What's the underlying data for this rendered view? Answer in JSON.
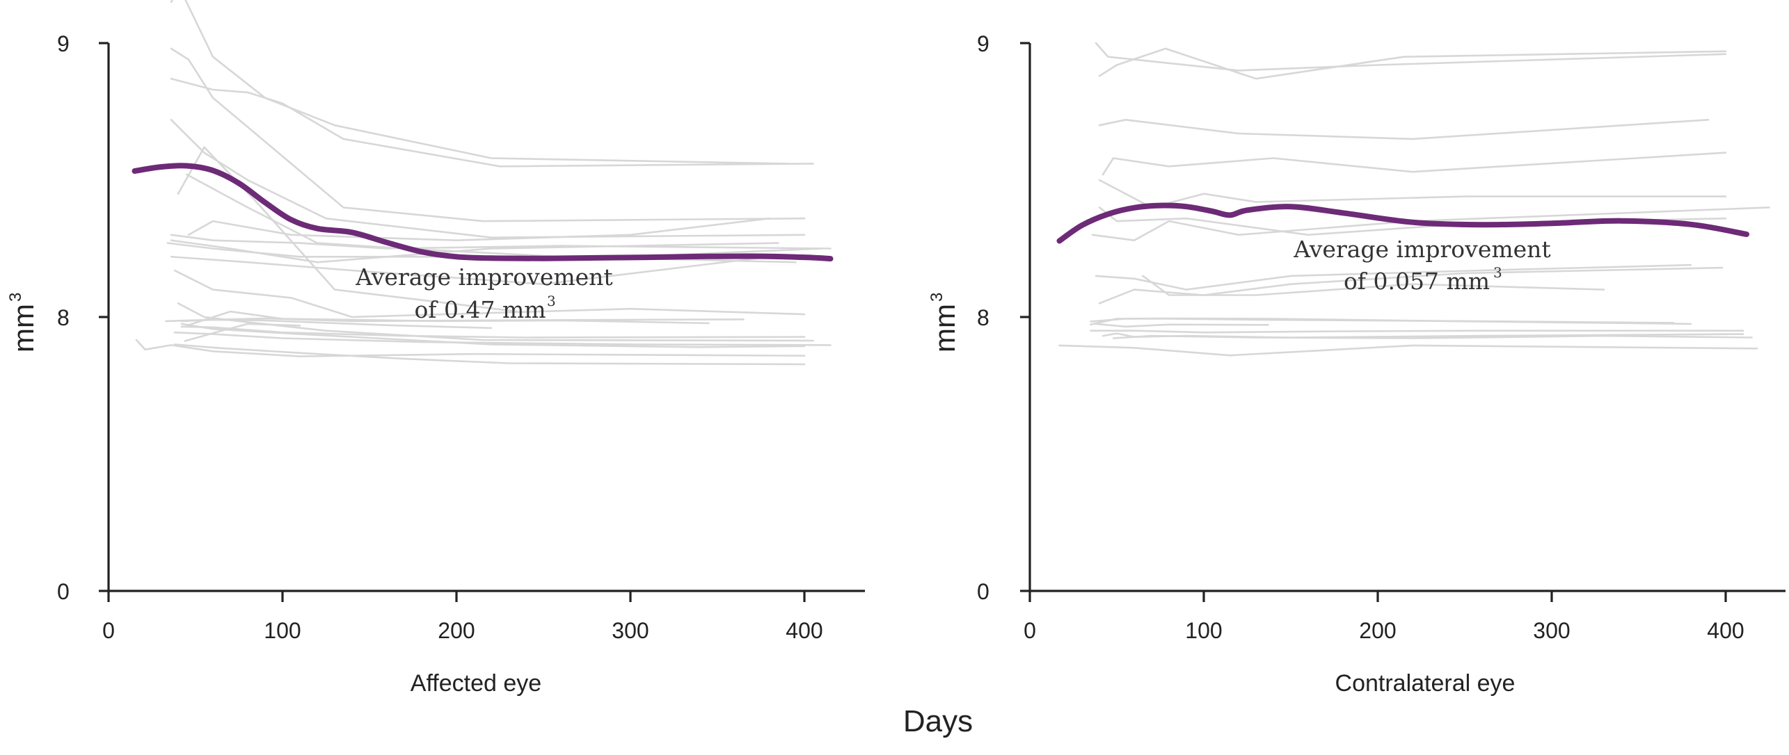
{
  "figure": {
    "common_xlabel": "Days",
    "colors": {
      "average": "#6d2a77",
      "individual": "#d7d7d7",
      "axis": "#222222"
    }
  },
  "chart_data": [
    {
      "type": "line",
      "title": "",
      "xlabel": "Affected eye",
      "ylabel": "mm",
      "ylabel_superscript": "3",
      "xlim": [
        0,
        435
      ],
      "ylim": [
        0,
        9
      ],
      "x_ticks": [
        0,
        100,
        200,
        300,
        400
      ],
      "y_ticks": [
        0,
        8,
        9
      ],
      "grid": false,
      "annotation": {
        "line1": "Average improvement",
        "line2": "of 0.47 mm",
        "superscript": "3"
      },
      "average_series": {
        "name": "",
        "x": [
          15,
          30,
          45,
          60,
          75,
          90,
          105,
          120,
          140,
          160,
          180,
          200,
          220,
          250,
          280,
          310,
          340,
          370,
          400,
          415
        ],
        "y": [
          8.533,
          8.548,
          8.552,
          8.535,
          8.488,
          8.418,
          8.355,
          8.323,
          8.309,
          8.272,
          8.238,
          8.22,
          8.215,
          8.214,
          8.216,
          8.218,
          8.221,
          8.222,
          8.218,
          8.213
        ]
      },
      "individual_series": [
        {
          "x": [
            36,
            41,
            60,
            90,
            130,
            220,
            390
          ],
          "y": [
            9.15,
            9.2,
            8.95,
            8.8,
            8.7,
            8.58,
            8.56
          ]
        },
        {
          "x": [
            36,
            46,
            60,
            90,
            135,
            215,
            400
          ],
          "y": [
            8.98,
            8.94,
            8.8,
            8.64,
            8.4,
            8.35,
            8.36
          ]
        },
        {
          "x": [
            36,
            60,
            80,
            100,
            135,
            225,
            405
          ],
          "y": [
            8.87,
            8.83,
            8.82,
            8.78,
            8.65,
            8.55,
            8.56
          ]
        },
        {
          "x": [
            36,
            55,
            80,
            125,
            220,
            400
          ],
          "y": [
            8.72,
            8.6,
            8.5,
            8.36,
            8.29,
            8.3
          ]
        },
        {
          "x": [
            36,
            70,
            120,
            220,
            385
          ],
          "y": [
            8.28,
            8.25,
            8.2,
            8.25,
            8.27
          ]
        },
        {
          "x": [
            36,
            80,
            140,
            250,
            380
          ],
          "y": [
            8.22,
            8.2,
            8.17,
            8.12,
            8.22
          ]
        },
        {
          "x": [
            33,
            60,
            90,
            140,
            250,
            365
          ],
          "y": [
            7.88,
            7.92,
            7.96,
            7.88,
            7.91,
            7.93
          ]
        },
        {
          "x": [
            40,
            55,
            85,
            130,
            235
          ],
          "y": [
            8.45,
            8.62,
            8.42,
            8.1,
            8.02
          ]
        },
        {
          "x": [
            42,
            60,
            90,
            160,
            220
          ],
          "y": [
            7.88,
            7.92,
            7.9,
            7.76,
            7.68
          ]
        },
        {
          "x": [
            38,
            60,
            100,
            180,
            300,
            415
          ],
          "y": [
            7.55,
            7.5,
            7.38,
            7.27,
            7.2,
            7.18
          ]
        },
        {
          "x": [
            16,
            21,
            36,
            60,
            110,
            210,
            400
          ],
          "y": [
            7.33,
            7.05,
            7.18,
            7.0,
            6.85,
            6.92,
            6.87
          ]
        },
        {
          "x": [
            38,
            62,
            110,
            170,
            230,
            400
          ],
          "y": [
            7.2,
            7.1,
            6.95,
            6.78,
            6.65,
            6.62
          ]
        },
        {
          "x": [
            40,
            55,
            80,
            125,
            215,
            405
          ],
          "y": [
            8.05,
            8.0,
            7.85,
            7.6,
            7.33,
            7.31
          ]
        },
        {
          "x": [
            42,
            60,
            100,
            170,
            240,
            400
          ],
          "y": [
            7.72,
            7.7,
            7.55,
            7.45,
            7.4,
            7.42
          ]
        },
        {
          "x": [
            34,
            60,
            110,
            200,
            300,
            410
          ],
          "y": [
            8.27,
            8.25,
            8.22,
            8.22,
            8.22,
            8.25
          ]
        },
        {
          "x": [
            45,
            70,
            100,
            190,
            260,
            345
          ],
          "y": [
            7.75,
            8.02,
            7.95,
            7.88,
            7.9,
            7.82
          ]
        },
        {
          "x": [
            38,
            60,
            105,
            140,
            300,
            400
          ],
          "y": [
            8.17,
            8.1,
            8.07,
            8.0,
            8.03,
            8.01
          ]
        },
        {
          "x": [
            45,
            80,
            120,
            170,
            260,
            395
          ],
          "y": [
            8.52,
            8.4,
            8.27,
            8.25,
            8.22,
            8.2
          ]
        },
        {
          "x": [
            36,
            60,
            110,
            160,
            260,
            415
          ],
          "y": [
            8.3,
            8.28,
            8.27,
            8.25,
            8.26,
            8.25
          ]
        },
        {
          "x": [
            44,
            65,
            80,
            110
          ],
          "y": [
            7.3,
            7.6,
            7.8,
            7.75
          ]
        },
        {
          "x": [
            46,
            60,
            105,
            200,
            300,
            380
          ],
          "y": [
            8.3,
            8.35,
            8.3,
            8.28,
            8.3,
            8.36
          ]
        },
        {
          "x": [
            42,
            60,
            110,
            220,
            340,
            400
          ],
          "y": [
            7.8,
            7.65,
            7.5,
            7.2,
            7.12,
            7.15
          ]
        }
      ]
    },
    {
      "type": "line",
      "title": "",
      "xlabel": "Contralateral eye",
      "ylabel": "mm",
      "ylabel_superscript": "3",
      "xlim": [
        0,
        435
      ],
      "ylim": [
        0,
        9
      ],
      "x_ticks": [
        0,
        100,
        200,
        300,
        400
      ],
      "y_ticks": [
        0,
        8,
        9
      ],
      "grid": false,
      "annotation": {
        "line1": "Average improvement",
        "line2": "of 0.057 mm",
        "superscript": "3"
      },
      "average_series": {
        "name": "",
        "x": [
          17,
          30,
          45,
          60,
          75,
          90,
          105,
          115,
          125,
          150,
          180,
          220,
          260,
          300,
          340,
          380,
          412
        ],
        "y": [
          8.278,
          8.335,
          8.376,
          8.399,
          8.407,
          8.403,
          8.386,
          8.372,
          8.39,
          8.403,
          8.38,
          8.346,
          8.337,
          8.342,
          8.351,
          8.338,
          8.302
        ]
      },
      "individual_series": [
        {
          "x": [
            38,
            45,
            120,
            200,
            400
          ],
          "y": [
            9.0,
            8.95,
            8.9,
            8.92,
            8.96
          ]
        },
        {
          "x": [
            40,
            50,
            78,
            130,
            215,
            400
          ],
          "y": [
            8.88,
            8.92,
            8.98,
            8.87,
            8.95,
            8.97
          ]
        },
        {
          "x": [
            40,
            55,
            120,
            220,
            390
          ],
          "y": [
            8.7,
            8.72,
            8.67,
            8.65,
            8.72
          ]
        },
        {
          "x": [
            42,
            48,
            80,
            140,
            220,
            400
          ],
          "y": [
            8.52,
            8.58,
            8.55,
            8.58,
            8.53,
            8.6
          ]
        },
        {
          "x": [
            40,
            70,
            100,
            130,
            250,
            400
          ],
          "y": [
            8.5,
            8.4,
            8.45,
            8.42,
            8.44,
            8.44
          ]
        },
        {
          "x": [
            40,
            50,
            90,
            160,
            250,
            400
          ],
          "y": [
            8.4,
            8.35,
            8.36,
            8.3,
            8.34,
            8.36
          ]
        },
        {
          "x": [
            36,
            60,
            80,
            120,
            220,
            425
          ],
          "y": [
            8.3,
            8.28,
            8.35,
            8.3,
            8.35,
            8.4
          ]
        },
        {
          "x": [
            38,
            60,
            90,
            150,
            260,
            380
          ],
          "y": [
            8.15,
            8.14,
            8.1,
            8.15,
            8.17,
            8.19
          ]
        },
        {
          "x": [
            40,
            60,
            100,
            150,
            250,
            398
          ],
          "y": [
            8.05,
            8.1,
            8.08,
            8.12,
            8.16,
            8.18
          ]
        },
        {
          "x": [
            65,
            80,
            130,
            220,
            330
          ],
          "y": [
            8.15,
            8.08,
            8.08,
            8.12,
            8.1
          ]
        },
        {
          "x": [
            35,
            55,
            80,
            130,
            250,
            370
          ],
          "y": [
            7.87,
            7.95,
            7.95,
            7.92,
            7.88,
            7.83
          ]
        },
        {
          "x": [
            35,
            50,
            75,
            140,
            240,
            380
          ],
          "y": [
            7.78,
            7.95,
            7.96,
            7.95,
            7.88,
            7.8
          ]
        },
        {
          "x": [
            38,
            55,
            80,
            137
          ],
          "y": [
            7.8,
            7.72,
            7.78,
            7.77
          ]
        },
        {
          "x": [
            35,
            60,
            100,
            170,
            260,
            410
          ],
          "y": [
            7.6,
            7.6,
            7.55,
            7.58,
            7.6,
            7.6
          ]
        },
        {
          "x": [
            42,
            50,
            60,
            90,
            150,
            260,
            410
          ],
          "y": [
            7.45,
            7.52,
            7.42,
            7.45,
            7.4,
            7.45,
            7.5
          ]
        },
        {
          "x": [
            48,
            70,
            130,
            220,
            330,
            415
          ],
          "y": [
            7.38,
            7.45,
            7.4,
            7.38,
            7.45,
            7.4
          ]
        },
        {
          "x": [
            17,
            60,
            115,
            220,
            418
          ],
          "y": [
            7.17,
            7.1,
            6.88,
            7.17,
            7.08
          ]
        }
      ]
    }
  ]
}
